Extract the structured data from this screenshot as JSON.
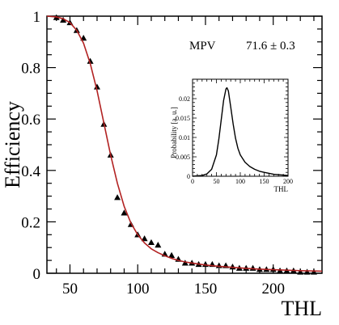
{
  "chart_data": [
    {
      "type": "scatter",
      "xlabel": "THL",
      "ylabel": "Efficiency",
      "xlim": [
        33,
        236
      ],
      "ylim": [
        0,
        1
      ],
      "x_ticks": [
        50,
        100,
        150,
        200
      ],
      "y_ticks": [
        0,
        0.2,
        0.4,
        0.6,
        0.8,
        1
      ],
      "x_tick_labels": [
        "50",
        "100",
        "150",
        "200"
      ],
      "y_tick_labels": [
        "0",
        "0.2",
        "0.4",
        "0.6",
        "0.8",
        "1"
      ],
      "grid": false,
      "annotation": {
        "label": "MPV",
        "value": "71.6 ± 0.3"
      },
      "series": [
        {
          "type": "scatter",
          "marker": "triangle",
          "color": "#000000",
          "x": [
            40,
            45,
            50,
            55,
            60,
            65,
            70,
            75,
            80,
            85,
            90,
            95,
            100,
            105,
            110,
            115,
            120,
            125,
            130,
            135,
            140,
            145,
            150,
            155,
            160,
            165,
            170,
            175,
            180,
            185,
            190,
            195,
            200,
            205,
            210,
            215,
            220,
            225,
            230
          ],
          "y": [
            0.995,
            0.985,
            0.975,
            0.945,
            0.915,
            0.825,
            0.725,
            0.58,
            0.46,
            0.295,
            0.235,
            0.19,
            0.15,
            0.135,
            0.12,
            0.11,
            0.075,
            0.07,
            0.055,
            0.04,
            0.04,
            0.035,
            0.035,
            0.035,
            0.03,
            0.03,
            0.025,
            0.02,
            0.02,
            0.02,
            0.015,
            0.015,
            0.015,
            0.01,
            0.01,
            0.01,
            0.005,
            0.005,
            0.005
          ]
        },
        {
          "type": "line",
          "color": "#b22222",
          "x": [
            33,
            40,
            45,
            50,
            55,
            60,
            65,
            70,
            75,
            80,
            85,
            90,
            95,
            100,
            105,
            110,
            115,
            120,
            125,
            130,
            135,
            140,
            145,
            150,
            160,
            170,
            180,
            190,
            200,
            210,
            220,
            230,
            236
          ],
          "y": [
            1.0,
            0.997,
            0.99,
            0.975,
            0.945,
            0.895,
            0.815,
            0.71,
            0.585,
            0.46,
            0.35,
            0.26,
            0.195,
            0.15,
            0.118,
            0.095,
            0.08,
            0.068,
            0.058,
            0.05,
            0.044,
            0.04,
            0.036,
            0.032,
            0.027,
            0.023,
            0.019,
            0.016,
            0.014,
            0.012,
            0.01,
            0.009,
            0.008
          ]
        }
      ]
    },
    {
      "type": "line",
      "xlabel": "THL",
      "ylabel": "Probability [a. u.]",
      "xlim": [
        0,
        200
      ],
      "ylim": [
        0,
        0.025
      ],
      "x_ticks": [
        0,
        50,
        100,
        150,
        200
      ],
      "y_ticks": [
        0,
        0.005,
        0.01,
        0.015,
        0.02
      ],
      "x_tick_labels": [
        "0",
        "50",
        "100",
        "150",
        "200"
      ],
      "y_tick_labels": [
        "0",
        "0.005",
        "0.01",
        "0.015",
        "0.02"
      ],
      "series": [
        {
          "color": "#000000",
          "x": [
            0,
            20,
            30,
            40,
            50,
            55,
            60,
            65,
            70,
            72,
            75,
            80,
            85,
            90,
            95,
            100,
            110,
            120,
            130,
            140,
            150,
            170,
            200
          ],
          "y": [
            0,
            0.0002,
            0.0006,
            0.0018,
            0.0055,
            0.0095,
            0.0145,
            0.0195,
            0.0225,
            0.0228,
            0.022,
            0.0178,
            0.0135,
            0.0098,
            0.0072,
            0.0055,
            0.0036,
            0.0025,
            0.0018,
            0.0013,
            0.001,
            0.0005,
            0.0002
          ]
        }
      ]
    }
  ]
}
